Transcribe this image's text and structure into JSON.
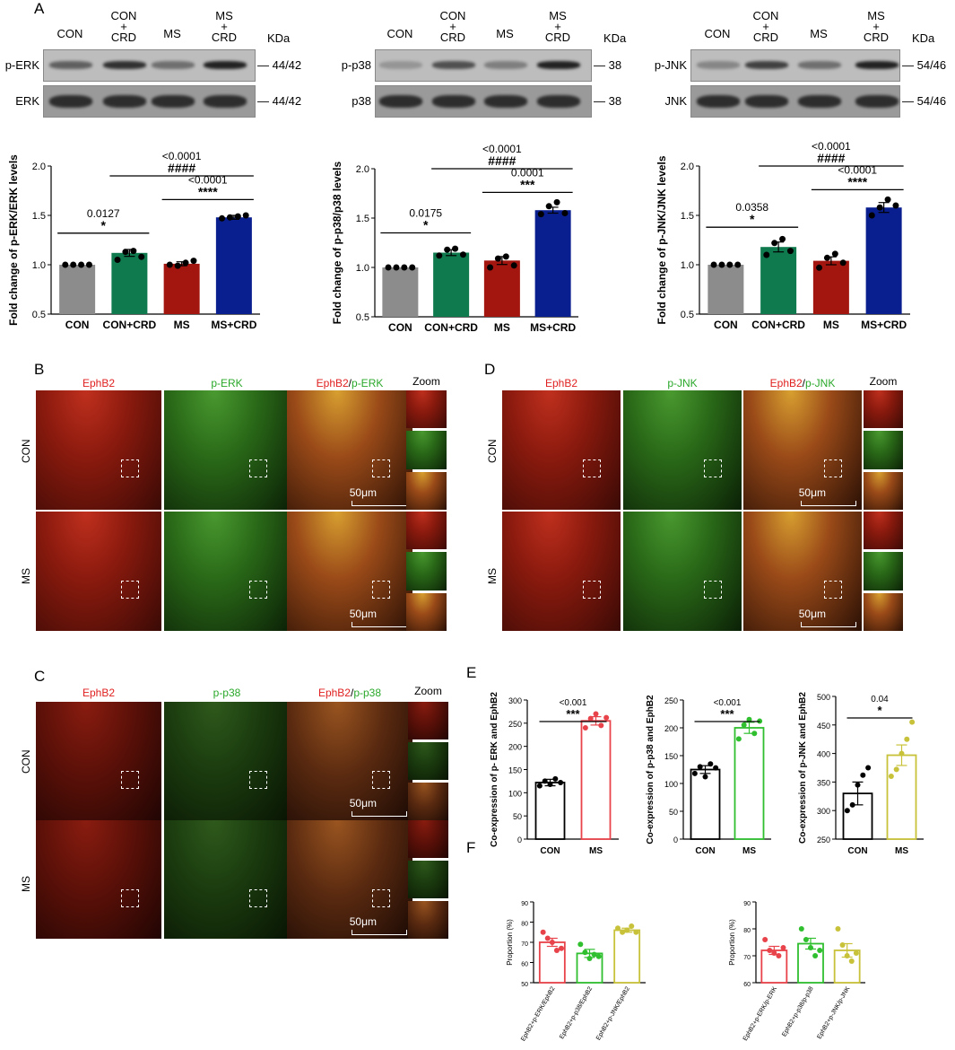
{
  "panels": {
    "A": "A",
    "B": "B",
    "C": "C",
    "D": "D",
    "E": "E",
    "F": "F"
  },
  "blots": [
    {
      "id": "erk",
      "groups": [
        "CON",
        "CON\n+\nCRD",
        "MS",
        "MS\n+\nCRD"
      ],
      "kda": "KDa",
      "rows": [
        {
          "name": "p-ERK",
          "size": "44/42"
        },
        {
          "name": "ERK",
          "size": "44/42"
        }
      ]
    },
    {
      "id": "p38",
      "groups": [
        "CON",
        "CON\n+\nCRD",
        "MS",
        "MS\n+\nCRD"
      ],
      "kda": "KDa",
      "rows": [
        {
          "name": "p-p38",
          "size": "38"
        },
        {
          "name": "p38",
          "size": "38"
        }
      ]
    },
    {
      "id": "jnk",
      "groups": [
        "CON",
        "CON\n+\nCRD",
        "MS",
        "MS\n+\nCRD"
      ],
      "kda": "KDa",
      "rows": [
        {
          "name": "p-JNK",
          "size": "54/46"
        },
        {
          "name": "JNK",
          "size": "54/46"
        }
      ]
    }
  ],
  "micrographs": {
    "B": {
      "headers": [
        "EphB2",
        "p-ERK",
        "EphB2/p-ERK",
        "Zoom"
      ],
      "h1": "EphB2",
      "h2": "p-ERK",
      "rows": [
        "CON",
        "MS"
      ],
      "scale": "50μm"
    },
    "C": {
      "headers": [
        "EphB2",
        "p-p38",
        "EphB2/p-p38",
        "Zoom"
      ],
      "h1": "EphB2",
      "h2": "p-p38",
      "rows": [
        "CON",
        "MS"
      ],
      "scale": "50μm"
    },
    "D": {
      "headers": [
        "EphB2",
        "p-JNK",
        "EphB2/p-JNK",
        "Zoom"
      ],
      "h1": "EphB2",
      "h2": "p-JNK",
      "rows": [
        "CON",
        "MS"
      ],
      "scale": "50μm"
    }
  },
  "colors": {
    "gray": "#8c8c8c",
    "green": "#0f7a4e",
    "red": "#a3150f",
    "blue": "#0a1f8f",
    "e_red": "#e8434a",
    "e_green": "#2fbf2f",
    "e_yellow": "#c8c23a"
  },
  "chart_data": [
    {
      "id": "A1",
      "type": "bar",
      "categories": [
        "CON",
        "CON+CRD",
        "MS",
        "MS+CRD"
      ],
      "values": [
        1.0,
        1.12,
        1.01,
        1.48
      ],
      "errors": [
        0,
        0.035,
        0.02,
        0.02
      ],
      "points": [
        [
          1,
          1,
          1,
          1
        ],
        [
          1.05,
          1.13,
          1.14,
          1.08
        ],
        [
          1.0,
          0.99,
          1.02,
          1.04
        ],
        [
          1.47,
          1.48,
          1.49,
          1.5
        ]
      ],
      "ylabel": "Fold change of p-ERK/ERK levels",
      "ylim": [
        0.5,
        2.0
      ],
      "yticks": [
        "0.5",
        "1.0",
        "1.5",
        "2.0"
      ],
      "annotations": [
        {
          "a": 0,
          "b": 1,
          "p": "0.0127",
          "s": "*"
        },
        {
          "a": 2,
          "b": 3,
          "p": "<0.0001",
          "s": "****"
        },
        {
          "a": 1,
          "b": 3,
          "p": "<0.0001",
          "s": "####"
        }
      ]
    },
    {
      "id": "A2",
      "type": "bar",
      "categories": [
        "CON",
        "CON+CRD",
        "MS",
        "MS+CRD"
      ],
      "values": [
        1.0,
        1.15,
        1.07,
        1.58
      ],
      "errors": [
        0,
        0.03,
        0.04,
        0.03
      ],
      "points": [
        [
          1,
          1,
          1,
          1
        ],
        [
          1.12,
          1.18,
          1.19,
          1.13
        ],
        [
          1.0,
          1.09,
          1.11,
          1.02
        ],
        [
          1.54,
          1.62,
          1.66,
          1.55
        ]
      ],
      "ylabel": "Fold change of p-p38/p38 levels",
      "ylim": [
        0.5,
        2.0
      ],
      "yticks": [
        "0.5",
        "1.0",
        "1.5",
        "2.0"
      ],
      "annotations": [
        {
          "a": 0,
          "b": 1,
          "p": "0.0175",
          "s": "*"
        },
        {
          "a": 2,
          "b": 3,
          "p": "0.0001",
          "s": "***"
        },
        {
          "a": 1,
          "b": 3,
          "p": "<0.0001",
          "s": "####"
        }
      ]
    },
    {
      "id": "A3",
      "type": "bar",
      "categories": [
        "CON",
        "CON+CRD",
        "MS",
        "MS+CRD"
      ],
      "values": [
        1.0,
        1.18,
        1.04,
        1.58
      ],
      "errors": [
        0,
        0.05,
        0.04,
        0.05
      ],
      "points": [
        [
          1,
          1,
          1,
          1
        ],
        [
          1.1,
          1.22,
          1.26,
          1.14
        ],
        [
          0.97,
          1.07,
          1.11,
          1.02
        ],
        [
          1.5,
          1.58,
          1.66,
          1.6
        ]
      ],
      "ylabel": "Fold change of p-JNK/JNK levels",
      "ylim": [
        0.5,
        2.0
      ],
      "yticks": [
        "0.5",
        "1.0",
        "1.5",
        "2.0"
      ],
      "annotations": [
        {
          "a": 0,
          "b": 1,
          "p": "0.0358",
          "s": "*"
        },
        {
          "a": 2,
          "b": 3,
          "p": "<0.0001",
          "s": "****"
        },
        {
          "a": 1,
          "b": 3,
          "p": "<0.0001",
          "s": "####"
        }
      ]
    },
    {
      "id": "E1",
      "type": "bar",
      "categories": [
        "CON",
        "MS"
      ],
      "values": [
        122,
        255
      ],
      "errors": [
        7,
        9
      ],
      "points": [
        [
          115,
          125,
          118,
          130,
          122
        ],
        [
          240,
          260,
          270,
          245,
          262
        ]
      ],
      "ylabel": "Co-expression of p- ERK and EphB2",
      "ylim": [
        0,
        300
      ],
      "yticks": [
        "0",
        "50",
        "100",
        "150",
        "200",
        "250",
        "300"
      ],
      "annotations": [
        {
          "a": 0,
          "b": 1,
          "p": "<0.001",
          "s": "***"
        }
      ]
    },
    {
      "id": "E2",
      "type": "bar",
      "categories": [
        "CON",
        "MS"
      ],
      "values": [
        125,
        200
      ],
      "errors": [
        7,
        10
      ],
      "points": [
        [
          118,
          130,
          112,
          135,
          128
        ],
        [
          180,
          205,
          215,
          190,
          212
        ]
      ],
      "ylabel": "Co-expression of p-p38 and EphB2",
      "ylim": [
        0,
        250
      ],
      "yticks": [
        "0",
        "50",
        "100",
        "150",
        "200",
        "250"
      ],
      "annotations": [
        {
          "a": 0,
          "b": 1,
          "p": "<0.001",
          "s": "***"
        }
      ]
    },
    {
      "id": "E3",
      "type": "bar",
      "categories": [
        "CON",
        "MS"
      ],
      "values": [
        330,
        397
      ],
      "errors": [
        20,
        18
      ],
      "points": [
        [
          300,
          310,
          345,
          362,
          375
        ],
        [
          360,
          372,
          400,
          425,
          455
        ]
      ],
      "ylabel": "Co-expression of p-JNK and EphB2",
      "ylim": [
        250,
        500
      ],
      "yticks": [
        "250",
        "300",
        "350",
        "400",
        "450",
        "500"
      ],
      "annotations": [
        {
          "a": 0,
          "b": 1,
          "p": "0.04",
          "s": "*"
        }
      ]
    },
    {
      "id": "F1",
      "type": "bar",
      "categories": [
        "EphB2+p-ERK/EphB2",
        "EphB2+p-p38/EphB2",
        "EphB2+p-JNK/EphB2"
      ],
      "values": [
        70,
        64.5,
        76
      ],
      "errors": [
        2,
        2,
        1
      ],
      "points": [
        [
          75,
          72,
          70,
          66,
          67
        ],
        [
          69,
          65,
          62,
          64,
          63
        ],
        [
          77,
          75,
          76,
          78,
          75
        ]
      ],
      "ylabel": "Proportion (%)",
      "ylim": [
        50,
        90
      ],
      "yticks": [
        "50",
        "60",
        "70",
        "80",
        "90"
      ],
      "annotations": []
    },
    {
      "id": "F2",
      "type": "bar",
      "categories": [
        "EphB2+p-ERK/p-ERK",
        "EphB2+p-p38/p-p38",
        "EphB2+p-JNK/p-JNK"
      ],
      "values": [
        72,
        74.5,
        72
      ],
      "errors": [
        1.5,
        2,
        2.5
      ],
      "points": [
        [
          76,
          72,
          71,
          70,
          73
        ],
        [
          80,
          76,
          73,
          70,
          72
        ],
        [
          80,
          74,
          70,
          68,
          71
        ]
      ],
      "ylabel": "Proportion (%)",
      "ylim": [
        60,
        90
      ],
      "yticks": [
        "60",
        "70",
        "80",
        "90"
      ],
      "annotations": []
    }
  ]
}
